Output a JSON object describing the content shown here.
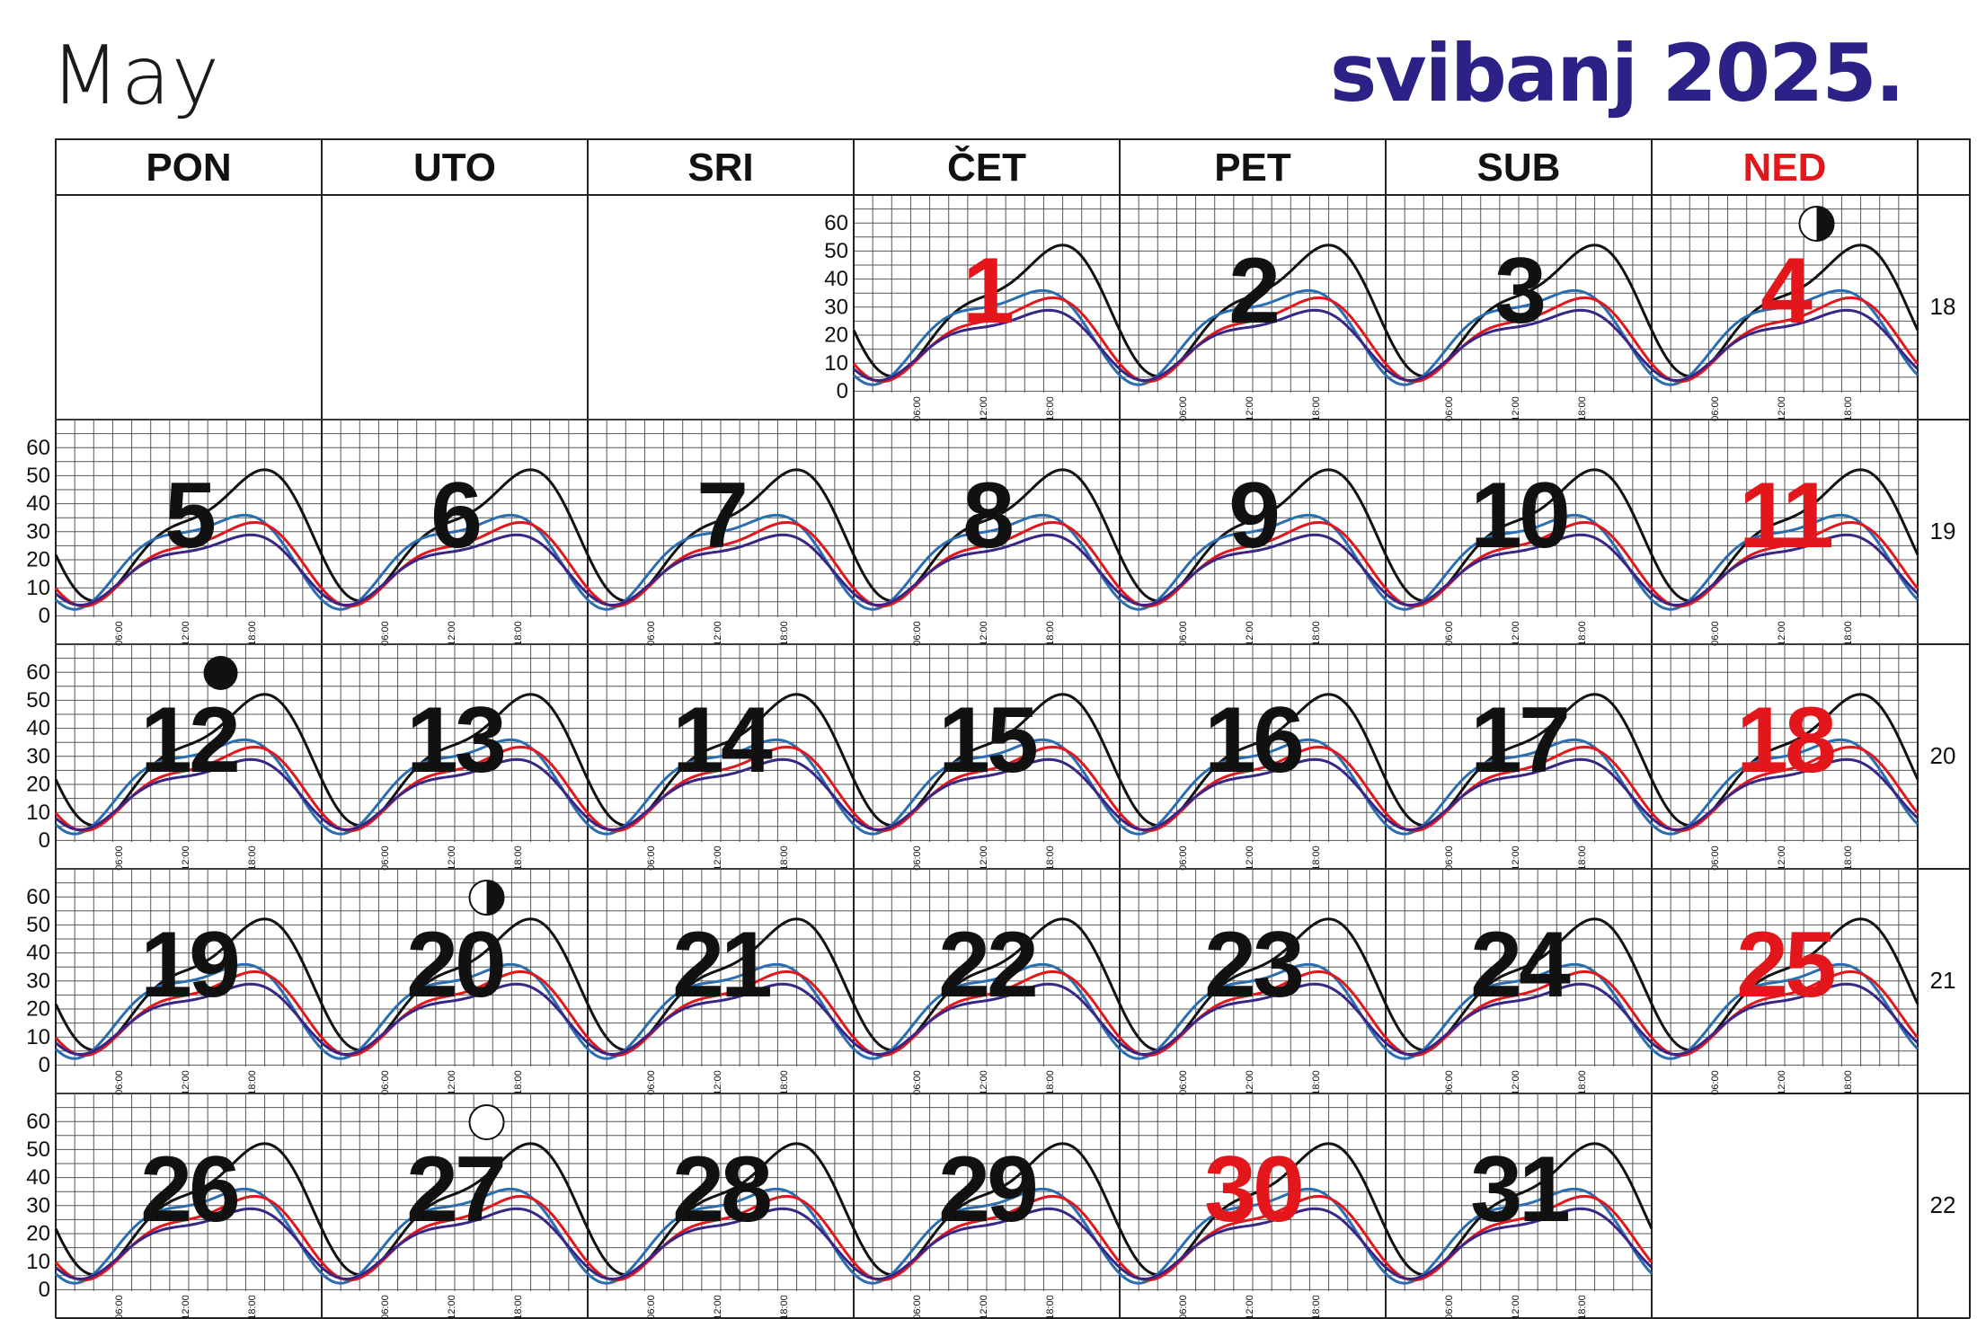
{
  "title_en": "May",
  "title_hr": "svibanj 2025.",
  "weekdays": [
    {
      "label": "PON",
      "sunday": false
    },
    {
      "label": "UTO",
      "sunday": false
    },
    {
      "label": "SRI",
      "sunday": false
    },
    {
      "label": "ČET",
      "sunday": false
    },
    {
      "label": "PET",
      "sunday": false
    },
    {
      "label": "SUB",
      "sunday": false
    },
    {
      "label": "NED",
      "sunday": true
    }
  ],
  "weeks": [
    {
      "number": "18",
      "days": [
        null,
        null,
        null,
        {
          "day": "1",
          "red": true
        },
        {
          "day": "2",
          "red": false
        },
        {
          "day": "3",
          "red": false
        },
        {
          "day": "4",
          "red": true,
          "moon": "first-quarter"
        }
      ]
    },
    {
      "number": "19",
      "days": [
        {
          "day": "5",
          "red": false
        },
        {
          "day": "6",
          "red": false
        },
        {
          "day": "7",
          "red": false
        },
        {
          "day": "8",
          "red": false
        },
        {
          "day": "9",
          "red": false
        },
        {
          "day": "10",
          "red": false
        },
        {
          "day": "11",
          "red": true
        }
      ]
    },
    {
      "number": "20",
      "days": [
        {
          "day": "12",
          "red": false,
          "moon": "new"
        },
        {
          "day": "13",
          "red": false
        },
        {
          "day": "14",
          "red": false
        },
        {
          "day": "15",
          "red": false
        },
        {
          "day": "16",
          "red": false
        },
        {
          "day": "17",
          "red": false
        },
        {
          "day": "18",
          "red": true
        }
      ]
    },
    {
      "number": "21",
      "days": [
        {
          "day": "19",
          "red": false
        },
        {
          "day": "20",
          "red": false,
          "moon": "first-quarter"
        },
        {
          "day": "21",
          "red": false
        },
        {
          "day": "22",
          "red": false
        },
        {
          "day": "23",
          "red": false
        },
        {
          "day": "24",
          "red": false
        },
        {
          "day": "25",
          "red": true
        }
      ]
    },
    {
      "number": "22",
      "days": [
        {
          "day": "26",
          "red": false
        },
        {
          "day": "27",
          "red": false,
          "moon": "full"
        },
        {
          "day": "28",
          "red": false
        },
        {
          "day": "29",
          "red": false
        },
        {
          "day": "30",
          "red": true
        },
        {
          "day": "31",
          "red": false
        },
        null
      ]
    }
  ],
  "y_ticks": [
    "0",
    "10",
    "20",
    "30",
    "40",
    "50",
    "60"
  ],
  "time_ticks": [
    "06:00",
    "12:00",
    "18:00"
  ],
  "colors": {
    "black": "#111111",
    "blue": "#2a6db0",
    "red": "#e3161b",
    "purple": "#3a2585",
    "title": "#2b2187",
    "sunday": "#e3161b"
  },
  "series_params": [
    {
      "color": "black",
      "amp": 20,
      "base": 30,
      "period": 1.0,
      "phase": 0.55
    },
    {
      "color": "blue",
      "amp": 15,
      "base": 22,
      "period": 1.0,
      "phase": 0.65
    },
    {
      "color": "red",
      "amp": 13,
      "base": 20,
      "period": 1.0,
      "phase": 0.6
    },
    {
      "color": "purple",
      "amp": 11,
      "base": 18,
      "period": 1.0,
      "phase": 0.62
    }
  ]
}
